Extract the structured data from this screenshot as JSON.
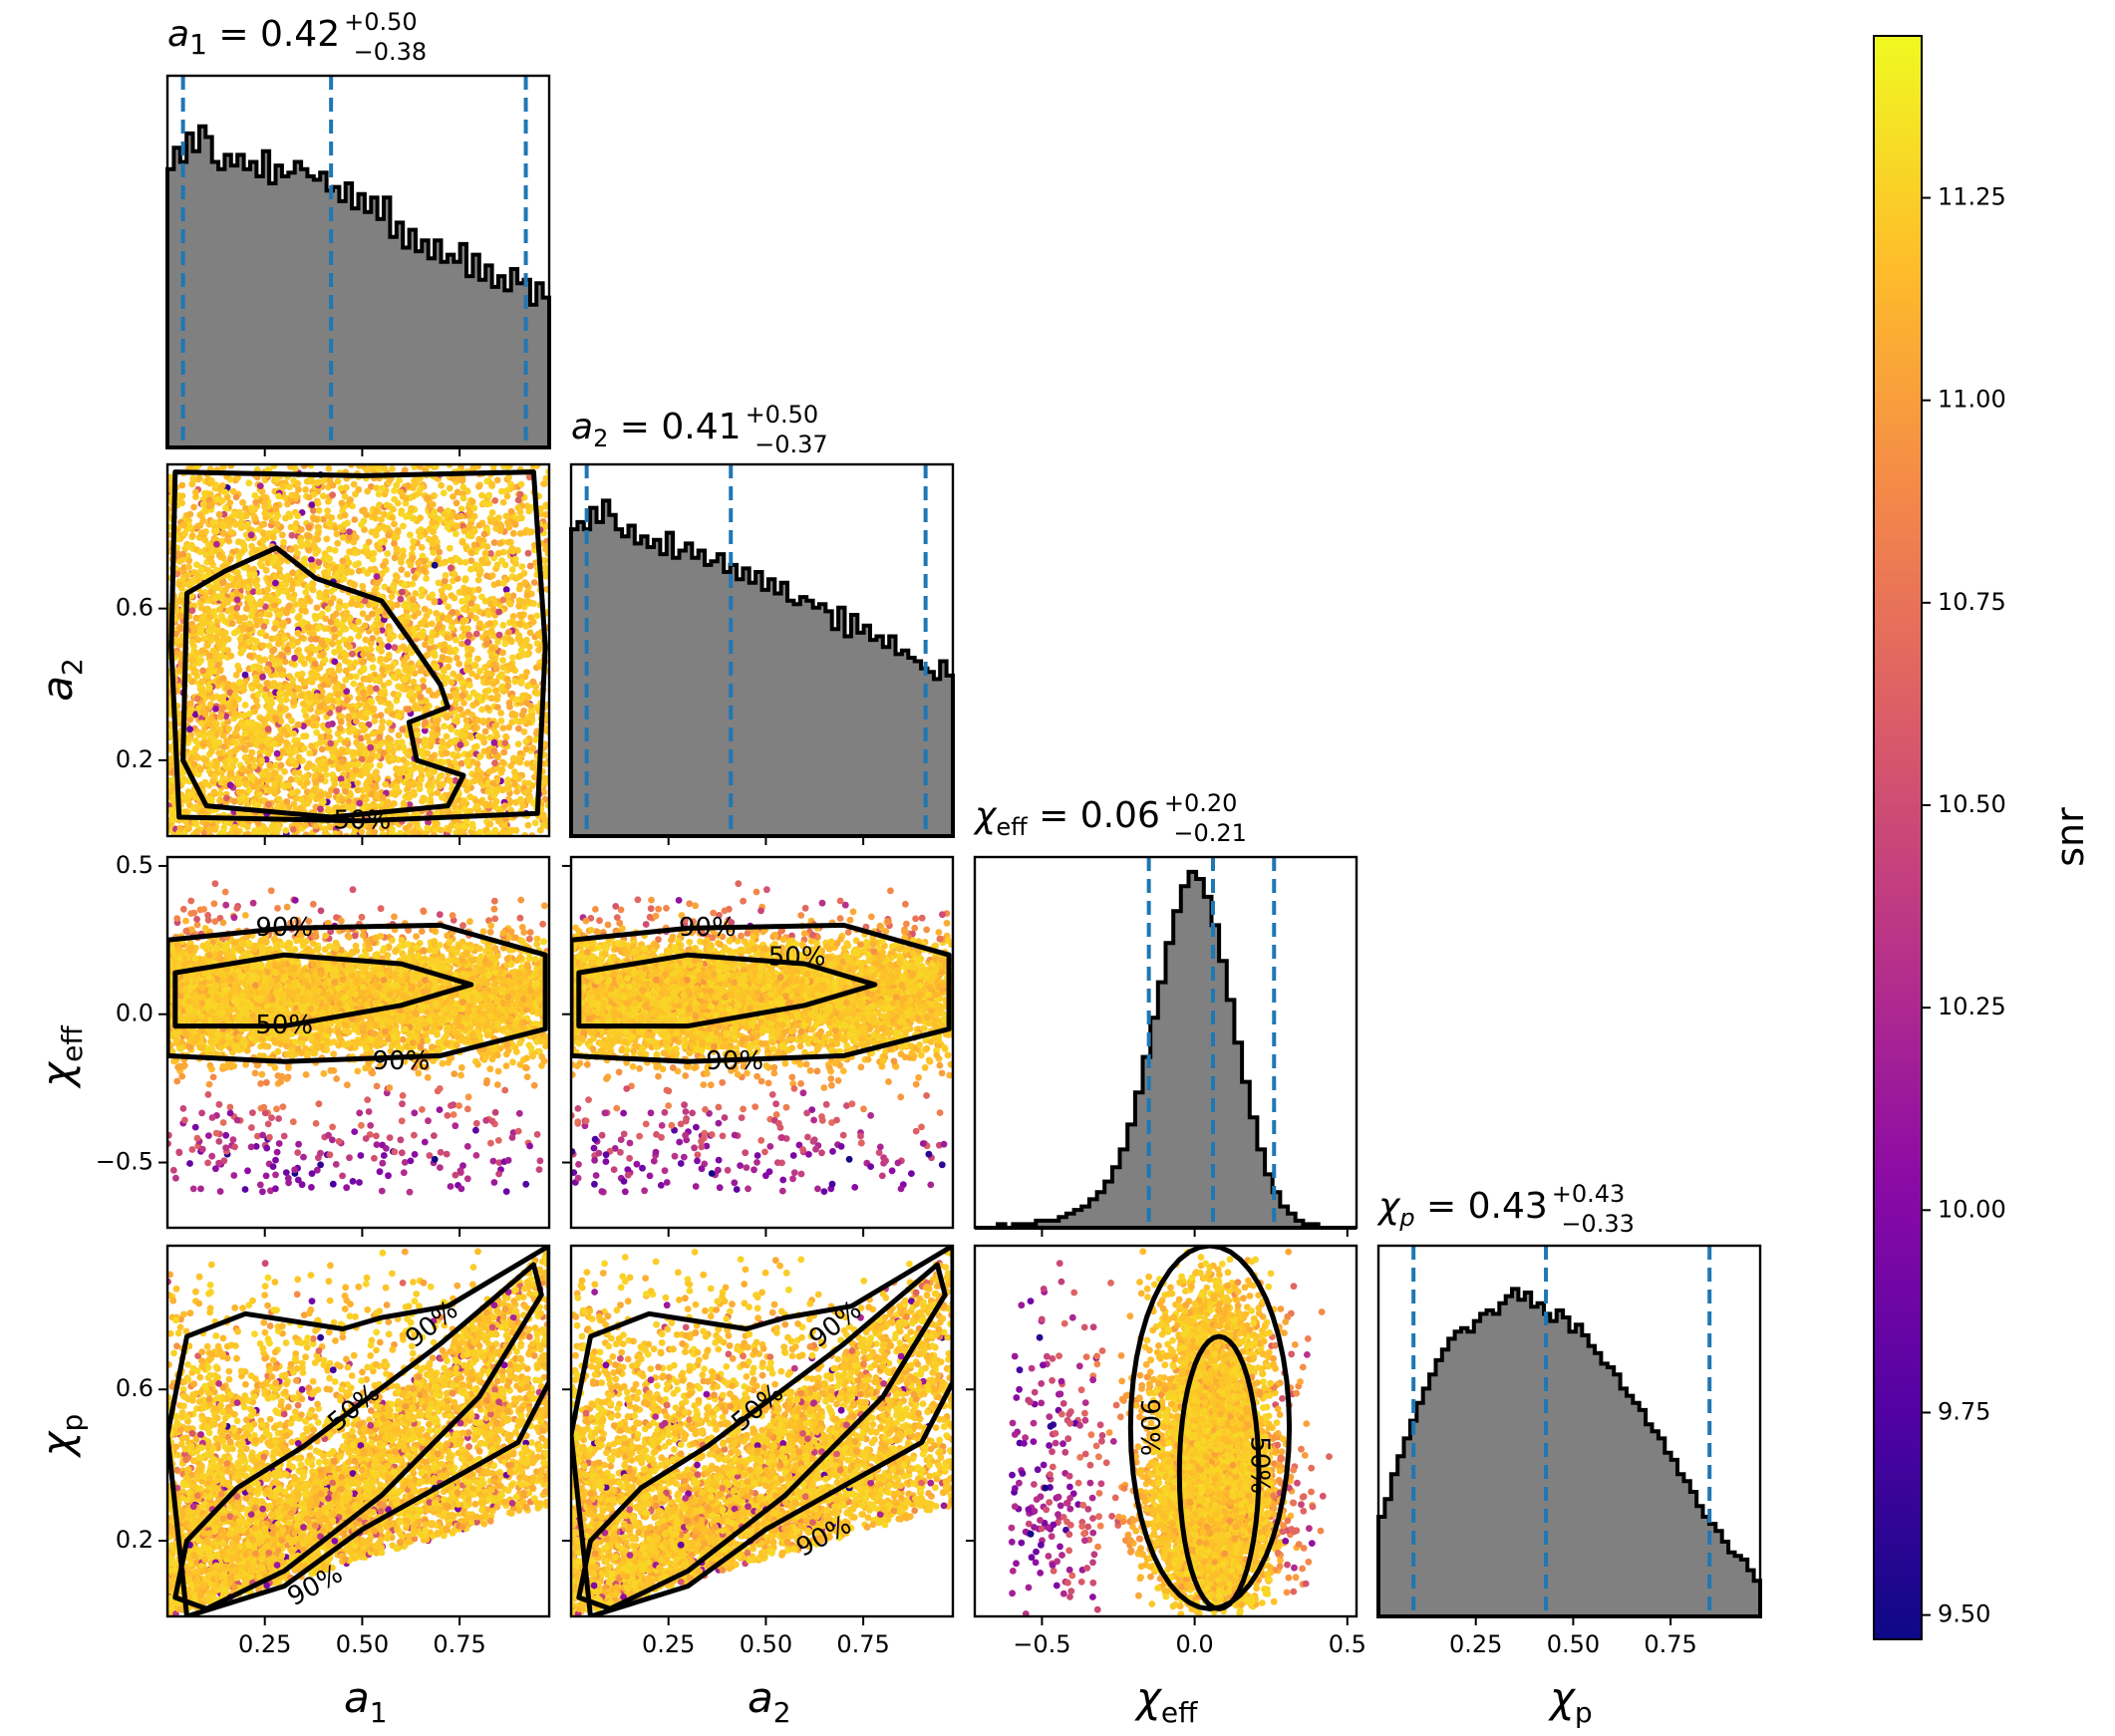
{
  "colors": {
    "hist_fill": "#808080",
    "hist_edge": "#000000",
    "quantile_line": "#1f77b4",
    "contour": "#000000",
    "colormap": [
      "#0d0887",
      "#5302a3",
      "#8b0aa5",
      "#b83289",
      "#db5c68",
      "#f48849",
      "#febd2a",
      "#f0f921"
    ]
  },
  "chart_data": {
    "type": "corner",
    "parameters": [
      {
        "key": "a1",
        "symbol": "a",
        "sub": "1",
        "range": [
          0.0,
          0.98
        ],
        "ticks": [
          0.25,
          0.5,
          0.75
        ],
        "tick_labels": [
          "0.25",
          "0.50",
          "0.75"
        ],
        "median": "0.42",
        "plus": "+0.50",
        "minus": "−0.38",
        "quantiles": [
          0.04,
          0.42,
          0.92
        ],
        "hist": [
          0.78,
          0.84,
          0.8,
          0.88,
          0.83,
          0.9,
          0.87,
          0.8,
          0.78,
          0.82,
          0.79,
          0.82,
          0.78,
          0.8,
          0.76,
          0.83,
          0.74,
          0.79,
          0.76,
          0.77,
          0.8,
          0.78,
          0.76,
          0.75,
          0.77,
          0.72,
          0.73,
          0.69,
          0.74,
          0.67,
          0.71,
          0.66,
          0.7,
          0.64,
          0.7,
          0.59,
          0.63,
          0.56,
          0.61,
          0.55,
          0.58,
          0.53,
          0.58,
          0.52,
          0.54,
          0.52,
          0.57,
          0.48,
          0.54,
          0.47,
          0.51,
          0.45,
          0.48,
          0.44,
          0.5,
          0.46,
          0.47,
          0.4,
          0.46,
          0.42
        ]
      },
      {
        "key": "a2",
        "symbol": "a",
        "sub": "2",
        "range": [
          0.0,
          0.98
        ],
        "ticks": [
          0.2,
          0.6
        ],
        "tick_labels": [
          "0.2",
          "0.6"
        ],
        "median": "0.41",
        "plus": "+0.50",
        "minus": "−0.37",
        "quantiles": [
          0.04,
          0.41,
          0.91
        ],
        "hist": [
          0.86,
          0.88,
          0.86,
          0.92,
          0.88,
          0.94,
          0.9,
          0.86,
          0.84,
          0.87,
          0.82,
          0.84,
          0.81,
          0.83,
          0.79,
          0.85,
          0.78,
          0.8,
          0.82,
          0.78,
          0.8,
          0.76,
          0.77,
          0.79,
          0.74,
          0.76,
          0.72,
          0.75,
          0.71,
          0.74,
          0.69,
          0.72,
          0.68,
          0.71,
          0.66,
          0.65,
          0.67,
          0.66,
          0.64,
          0.65,
          0.63,
          0.58,
          0.64,
          0.56,
          0.62,
          0.57,
          0.59,
          0.55,
          0.56,
          0.53,
          0.56,
          0.51,
          0.52,
          0.5,
          0.49,
          0.47,
          0.46,
          0.44,
          0.49,
          0.45
        ]
      },
      {
        "key": "chi_eff",
        "symbol": "χ",
        "sub": "eff",
        "range": [
          -0.72,
          0.53
        ],
        "ticks": [
          -0.5,
          0.0,
          0.5
        ],
        "tick_labels": [
          "−0.5",
          "0.0",
          "0.5"
        ],
        "median": "0.06",
        "plus": "+0.20",
        "minus": "−0.21",
        "quantiles": [
          -0.15,
          0.06,
          0.26
        ],
        "hist": [
          0.0,
          0.0,
          0.0,
          0.01,
          0.0,
          0.01,
          0.01,
          0.01,
          0.02,
          0.02,
          0.02,
          0.03,
          0.04,
          0.05,
          0.06,
          0.08,
          0.1,
          0.13,
          0.17,
          0.22,
          0.29,
          0.38,
          0.48,
          0.59,
          0.69,
          0.8,
          0.89,
          0.96,
          1.0,
          0.98,
          0.93,
          0.85,
          0.75,
          0.64,
          0.52,
          0.41,
          0.31,
          0.22,
          0.15,
          0.1,
          0.06,
          0.04,
          0.02,
          0.01,
          0.01,
          0.0,
          0.0,
          0.0,
          0.0,
          0.0
        ]
      },
      {
        "key": "chi_p",
        "symbol": "χ",
        "sub": "p",
        "range": [
          0.0,
          0.98
        ],
        "ticks": [
          0.2,
          0.6
        ],
        "tick_labels": [
          "0.2",
          "0.6"
        ],
        "xticks": [
          0.25,
          0.5,
          0.75
        ],
        "xtick_labels": [
          "0.25",
          "0.50",
          "0.75"
        ],
        "median": "0.43",
        "plus": "+0.43",
        "minus": "−0.33",
        "quantiles": [
          0.09,
          0.43,
          0.85
        ],
        "hist": [
          0.28,
          0.33,
          0.4,
          0.45,
          0.5,
          0.55,
          0.6,
          0.64,
          0.68,
          0.72,
          0.75,
          0.78,
          0.8,
          0.81,
          0.8,
          0.83,
          0.85,
          0.86,
          0.85,
          0.88,
          0.9,
          0.92,
          0.89,
          0.91,
          0.87,
          0.88,
          0.85,
          0.83,
          0.86,
          0.84,
          0.8,
          0.82,
          0.79,
          0.76,
          0.74,
          0.71,
          0.7,
          0.68,
          0.64,
          0.62,
          0.6,
          0.58,
          0.54,
          0.52,
          0.5,
          0.46,
          0.44,
          0.4,
          0.38,
          0.35,
          0.31,
          0.28,
          0.26,
          0.24,
          0.21,
          0.18,
          0.17,
          0.16,
          0.13,
          0.1
        ]
      }
    ],
    "y_ticks": {
      "a2": {
        "ticks": [
          0.2,
          0.6
        ],
        "labels": [
          "0.2",
          "0.6"
        ]
      },
      "chi_eff": {
        "ticks": [
          -0.5,
          0.0,
          0.5
        ],
        "labels": [
          "−0.5",
          "0.0",
          "0.5"
        ]
      },
      "chi_p": {
        "ticks": [
          0.2,
          0.6
        ],
        "labels": [
          "0.2",
          "0.6"
        ]
      }
    },
    "contour_levels": [
      "50%",
      "90%"
    ],
    "colorbar": {
      "label": "snr",
      "range": [
        9.47,
        11.45
      ],
      "ticks": [
        9.5,
        9.75,
        10.0,
        10.25,
        10.5,
        10.75,
        11.0,
        11.25
      ],
      "tick_labels": [
        "9.50",
        "9.75",
        "10.00",
        "10.25",
        "10.50",
        "10.75",
        "11.00",
        "11.25"
      ]
    }
  }
}
